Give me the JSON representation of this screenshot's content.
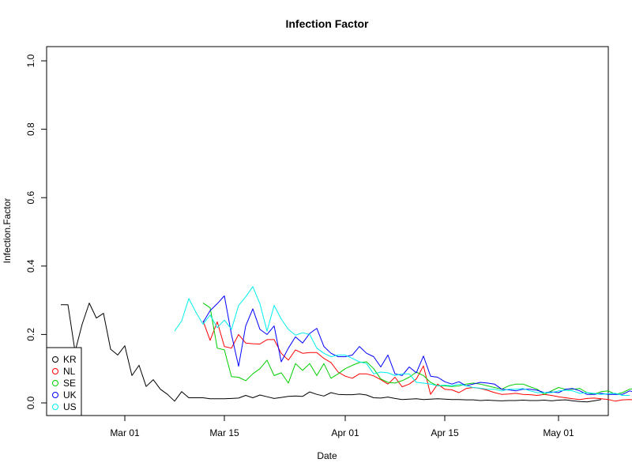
{
  "chart_data": {
    "type": "line",
    "title": "Infection Factor",
    "xlabel": "Date",
    "ylabel": "Infection.Factor",
    "xlim": [
      "2020-02-19",
      "2020-05-08"
    ],
    "ylim": [
      0,
      1
    ],
    "x_ticks": [
      {
        "date": "2020-03-01",
        "label": "Mar 01"
      },
      {
        "date": "2020-03-15",
        "label": "Mar 15"
      },
      {
        "date": "2020-04-01",
        "label": "Apr 01"
      },
      {
        "date": "2020-04-15",
        "label": "Apr 15"
      },
      {
        "date": "2020-05-01",
        "label": "May 01"
      }
    ],
    "y_ticks": [
      "0.0",
      "0.2",
      "0.4",
      "0.6",
      "0.8",
      "1.0"
    ],
    "grid": false,
    "legend": {
      "position": "bottom-left",
      "marker": "open-circle"
    },
    "series": [
      {
        "name": "KR",
        "color": "#000000",
        "start": "2020-02-21",
        "values": [
          0.287,
          0.287,
          0.15,
          0.23,
          0.292,
          0.248,
          0.262,
          0.157,
          0.14,
          0.167,
          0.08,
          0.11,
          0.048,
          0.068,
          0.04,
          0.025,
          0.005,
          0.033,
          0.015,
          0.015,
          0.015,
          0.012,
          0.012,
          0.012,
          0.013,
          0.014,
          0.022,
          0.015,
          0.023,
          0.018,
          0.013,
          0.016,
          0.019,
          0.02,
          0.019,
          0.032,
          0.025,
          0.02,
          0.03,
          0.025,
          0.024,
          0.024,
          0.026,
          0.023,
          0.015,
          0.014,
          0.017,
          0.013,
          0.01,
          0.011,
          0.012,
          0.01,
          0.011,
          0.012,
          0.011,
          0.01,
          0.01,
          0.009,
          0.009,
          0.007,
          0.008,
          0.007,
          0.006,
          0.007,
          0.007,
          0.008,
          0.007,
          0.007,
          0.008,
          0.006,
          0.008,
          0.009,
          0.006,
          0.004,
          0.003,
          0.006,
          0.01
        ]
      },
      {
        "name": "NL",
        "color": "#ff0000",
        "start": "2020-03-12",
        "values": [
          0.24,
          0.183,
          0.237,
          0.165,
          0.16,
          0.2,
          0.175,
          0.173,
          0.172,
          0.185,
          0.185,
          0.145,
          0.125,
          0.155,
          0.145,
          0.147,
          0.147,
          0.13,
          0.118,
          0.09,
          0.078,
          0.072,
          0.085,
          0.085,
          0.079,
          0.068,
          0.055,
          0.075,
          0.047,
          0.055,
          0.07,
          0.108,
          0.025,
          0.055,
          0.04,
          0.038,
          0.03,
          0.042,
          0.045,
          0.042,
          0.037,
          0.03,
          0.025,
          0.026,
          0.028,
          0.025,
          0.024,
          0.022,
          0.025,
          0.022,
          0.018,
          0.015,
          0.012,
          0.01,
          0.013,
          0.014,
          0.012,
          0.01,
          0.005,
          0.009,
          0.01,
          0.008,
          0.008,
          0.011,
          0.012
        ]
      },
      {
        "name": "SE",
        "color": "#00cd00",
        "start": "2020-03-12",
        "values": [
          0.292,
          0.278,
          0.16,
          0.155,
          0.077,
          0.075,
          0.065,
          0.085,
          0.1,
          0.125,
          0.08,
          0.088,
          0.058,
          0.115,
          0.095,
          0.115,
          0.08,
          0.115,
          0.072,
          0.085,
          0.1,
          0.11,
          0.118,
          0.12,
          0.1,
          0.07,
          0.06,
          0.058,
          0.065,
          0.075,
          0.09,
          0.08,
          0.06,
          0.05,
          0.05,
          0.048,
          0.05,
          0.055,
          0.058,
          0.055,
          0.05,
          0.045,
          0.04,
          0.05,
          0.055,
          0.055,
          0.047,
          0.04,
          0.025,
          0.035,
          0.045,
          0.04,
          0.04,
          0.042,
          0.03,
          0.025,
          0.033,
          0.035,
          0.025,
          0.03,
          0.04,
          0.043,
          0.038
        ]
      },
      {
        "name": "UK",
        "color": "#0000ff",
        "start": "2020-03-12",
        "values": [
          0.235,
          0.27,
          0.29,
          0.313,
          0.2,
          0.107,
          0.225,
          0.275,
          0.215,
          0.2,
          0.225,
          0.12,
          0.16,
          0.193,
          0.175,
          0.203,
          0.218,
          0.165,
          0.145,
          0.135,
          0.135,
          0.14,
          0.165,
          0.145,
          0.135,
          0.105,
          0.14,
          0.085,
          0.08,
          0.105,
          0.088,
          0.137,
          0.078,
          0.075,
          0.062,
          0.055,
          0.062,
          0.05,
          0.055,
          0.06,
          0.058,
          0.055,
          0.04,
          0.038,
          0.035,
          0.04,
          0.04,
          0.037,
          0.03,
          0.032,
          0.03,
          0.04,
          0.042,
          0.035,
          0.025,
          0.025,
          0.028,
          0.025,
          0.025,
          0.025,
          0.035,
          0.03,
          0.028
        ]
      },
      {
        "name": "US",
        "color": "#00eeee",
        "start": "2020-03-08",
        "values": [
          0.21,
          0.24,
          0.305,
          0.265,
          0.23,
          0.257,
          0.22,
          0.242,
          0.215,
          0.285,
          0.31,
          0.34,
          0.29,
          0.21,
          0.285,
          0.245,
          0.215,
          0.198,
          0.205,
          0.2,
          0.16,
          0.145,
          0.135,
          0.14,
          0.14,
          0.13,
          0.12,
          0.115,
          0.085,
          0.09,
          0.088,
          0.08,
          0.085,
          0.085,
          0.06,
          0.058,
          0.055,
          0.05,
          0.052,
          0.05,
          0.055,
          0.05,
          0.045,
          0.043,
          0.04,
          0.04,
          0.035,
          0.04,
          0.04,
          0.042,
          0.035,
          0.03,
          0.03,
          0.03,
          0.035,
          0.037,
          0.035,
          0.028,
          0.03,
          0.028,
          0.025,
          0.027,
          0.028,
          0.022,
          0.022
        ]
      }
    ]
  }
}
